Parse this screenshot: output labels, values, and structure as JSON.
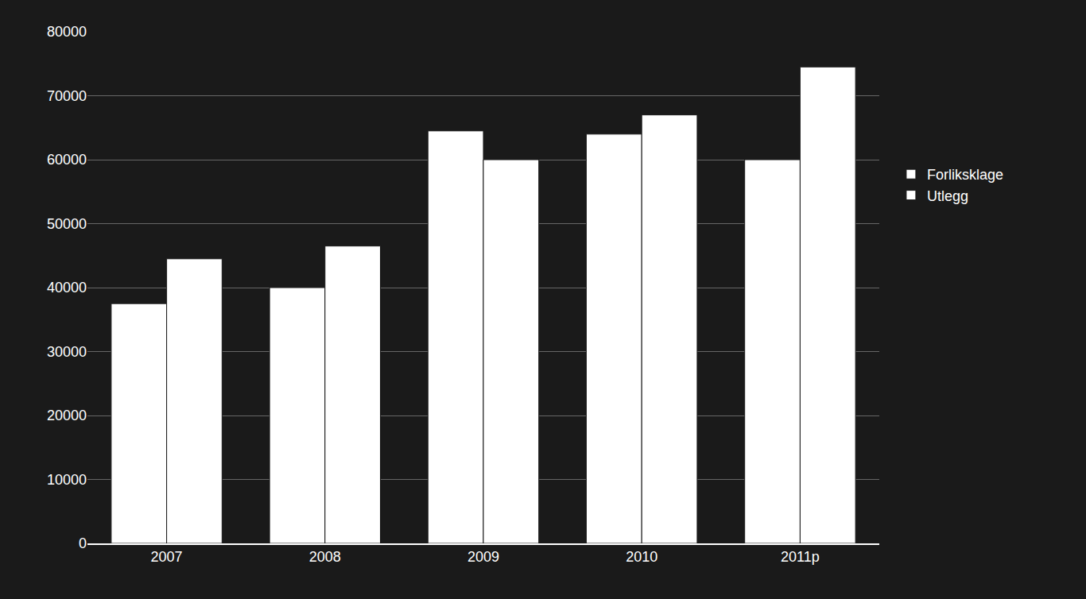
{
  "chart_data": {
    "type": "bar",
    "categories": [
      "2007",
      "2008",
      "2009",
      "2010",
      "2011p"
    ],
    "series": [
      {
        "name": "Forliksklage",
        "color": "#ffffff",
        "values": [
          37500,
          40000,
          64500,
          64000,
          60000
        ]
      },
      {
        "name": "Utlegg",
        "color": "#ffffff",
        "values": [
          44500,
          46500,
          60000,
          67000,
          74500
        ]
      }
    ],
    "ylim": [
      0,
      80000
    ],
    "yticks": [
      0,
      10000,
      20000,
      30000,
      40000,
      50000,
      60000,
      70000,
      80000
    ],
    "grid": true,
    "legend": "right"
  }
}
